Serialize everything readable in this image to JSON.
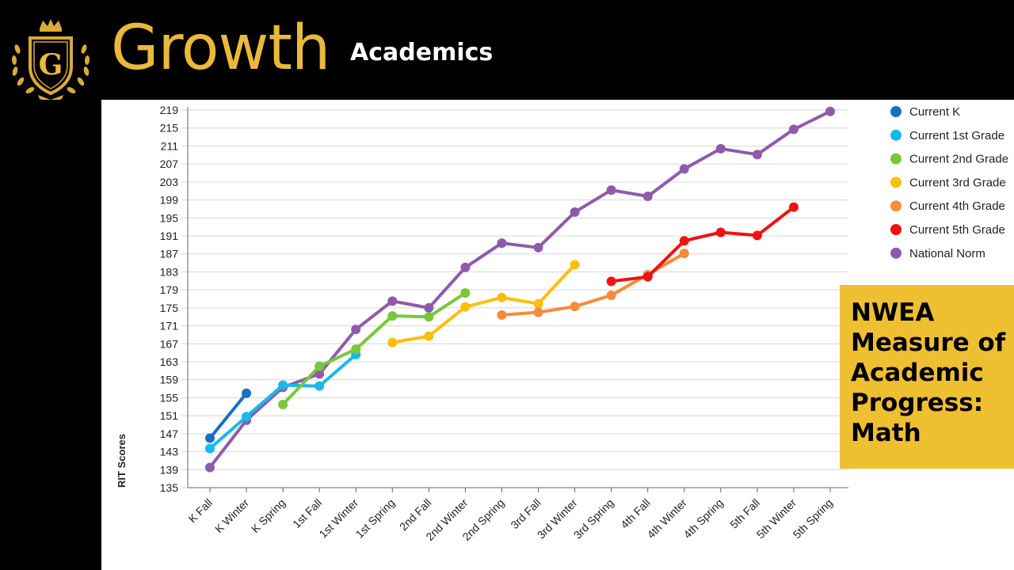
{
  "header": {
    "brand": "Growth",
    "subtitle": "Academics",
    "logo_icon": "crest-logo-icon"
  },
  "callout": {
    "text": "NWEA\nMeasure of\nAcademic\nProgress:\nMath",
    "color": "#efbf32"
  },
  "chart_data": {
    "type": "line",
    "title": "",
    "xlabel": "",
    "ylabel": "RIT Scores",
    "ylim": [
      135,
      219
    ],
    "yticks": [
      135,
      139,
      143,
      147,
      151,
      155,
      159,
      163,
      167,
      171,
      175,
      179,
      183,
      187,
      191,
      195,
      199,
      203,
      207,
      211,
      215,
      219
    ],
    "grid": true,
    "legend_position": "top-right",
    "categories": [
      "K Fall",
      "K Winter",
      "K Spring",
      "1st Fall",
      "1st Winter",
      "1st Spring",
      "2nd Fall",
      "2nd Winter",
      "2nd Spring",
      "3rd Fall",
      "3rd Winter",
      "3rd Spring",
      "4th Fall",
      "4th Winter",
      "4th Spring",
      "5th Fall",
      "5th Winter",
      "5th Spring"
    ],
    "series": [
      {
        "name": "National Norm",
        "color": "#8e5bab",
        "values": [
          139.5,
          150,
          157.3,
          160.3,
          170.2,
          176.5,
          175,
          184,
          189.4,
          188.4,
          196.3,
          201.2,
          199.8,
          205.9,
          210.4,
          209.1,
          214.7,
          218.7
        ]
      },
      {
        "name": "Current K",
        "color": "#1a6fc4",
        "values": [
          146,
          156,
          null,
          null,
          null,
          null,
          null,
          null,
          null,
          null,
          null,
          null,
          null,
          null,
          null,
          null,
          null,
          null
        ]
      },
      {
        "name": "Current 1st Grade",
        "color": "#19b7ea",
        "values": [
          143.7,
          150.8,
          157.8,
          157.6,
          164.6,
          null,
          null,
          null,
          null,
          null,
          null,
          null,
          null,
          null,
          null,
          null,
          null,
          null
        ]
      },
      {
        "name": "Current 2nd Grade",
        "color": "#78c83a",
        "values": [
          null,
          null,
          153.5,
          162,
          165.8,
          173.2,
          173,
          178.3,
          null,
          null,
          null,
          null,
          null,
          null,
          null,
          null,
          null,
          null
        ]
      },
      {
        "name": "Current 3rd Grade",
        "color": "#fbbf0b",
        "values": [
          null,
          null,
          null,
          null,
          null,
          167.3,
          168.7,
          175.2,
          177.3,
          175.9,
          184.6,
          null,
          null,
          null,
          null,
          null,
          null,
          null
        ]
      },
      {
        "name": "Current 4th Grade",
        "color": "#f68b3c",
        "values": [
          null,
          null,
          null,
          null,
          null,
          null,
          null,
          null,
          173.4,
          174,
          175.3,
          177.8,
          182.4,
          187.1,
          null,
          null,
          null,
          null
        ]
      },
      {
        "name": "Current 5th Grade",
        "color": "#ef1212",
        "values": [
          null,
          null,
          null,
          null,
          null,
          null,
          null,
          null,
          null,
          null,
          null,
          180.9,
          181.9,
          189.9,
          191.8,
          191.1,
          197.4,
          null
        ]
      }
    ],
    "legend": [
      "Current K",
      "Current 1st Grade",
      "Current 2nd Grade",
      "Current 3rd Grade",
      "Current 4th Grade",
      "Current 5th Grade",
      "National Norm"
    ]
  }
}
